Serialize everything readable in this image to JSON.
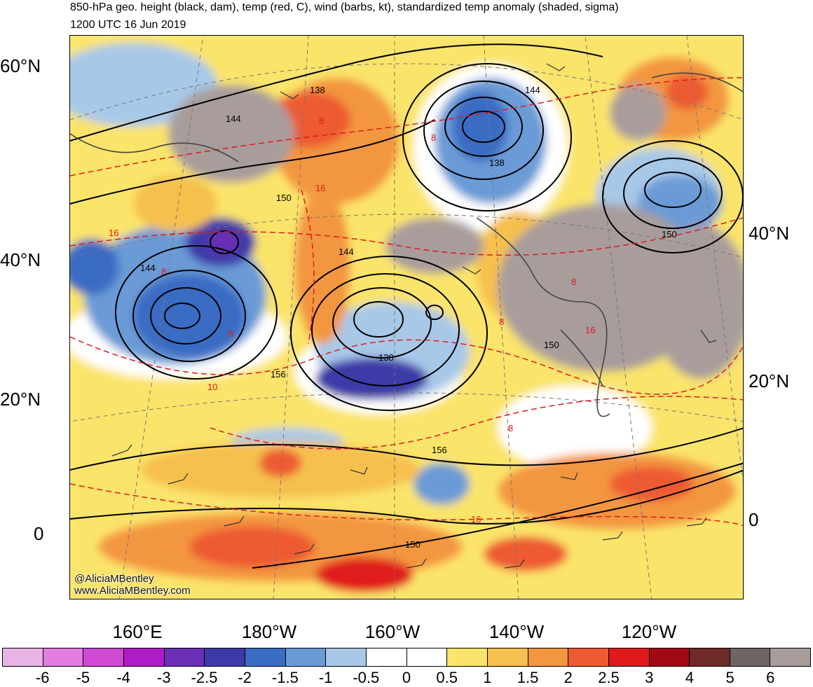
{
  "header": {
    "title": "850-hPa geo. height (black, dam), temp (red, C), wind (barbs, kt), standardized temp anomaly (shaded, sigma)",
    "valid_time": "1200 UTC 16 Jun 2019"
  },
  "axes": {
    "left_lat_labels": [
      "60°N",
      "40°N",
      "20°N",
      "0"
    ],
    "right_lat_labels": [
      "40°N",
      "20°N",
      "0"
    ],
    "lon_labels": [
      "160°E",
      "180°W",
      "160°W",
      "140°W",
      "120°W"
    ]
  },
  "contour_labels": {
    "height": [
      "138",
      "144",
      "138",
      "144",
      "150",
      "144",
      "144",
      "150",
      "138",
      "156",
      "150",
      "156",
      "150"
    ],
    "temp": [
      "8",
      "8",
      "16",
      "8",
      "8",
      "16",
      "8",
      "10",
      "8",
      "16",
      "8",
      "16"
    ]
  },
  "credit": {
    "handle": "@AliciaMBentley",
    "url": "www.AliciaMBentley.com"
  },
  "colorbar": {
    "labels": [
      "-6",
      "-5",
      "-4",
      "-3",
      "-2.5",
      "-2",
      "-1.5",
      "-1",
      "-0.5",
      "0",
      "0.5",
      "1",
      "1.5",
      "2",
      "2.5",
      "3",
      "4",
      "5",
      "6"
    ],
    "colors": [
      "#e8b4e6",
      "#e27ee0",
      "#d14ad4",
      "#b01bc8",
      "#6a2fb6",
      "#3d3aa8",
      "#3a6cc4",
      "#6b9bd6",
      "#a8c8e8",
      "#ffffff",
      "#ffffff",
      "#fbe46a",
      "#f6c04e",
      "#f39640",
      "#ee5a32",
      "#e01a1c",
      "#a10a12",
      "#6e2a26",
      "#6c6563",
      "#a89d9b"
    ]
  }
}
